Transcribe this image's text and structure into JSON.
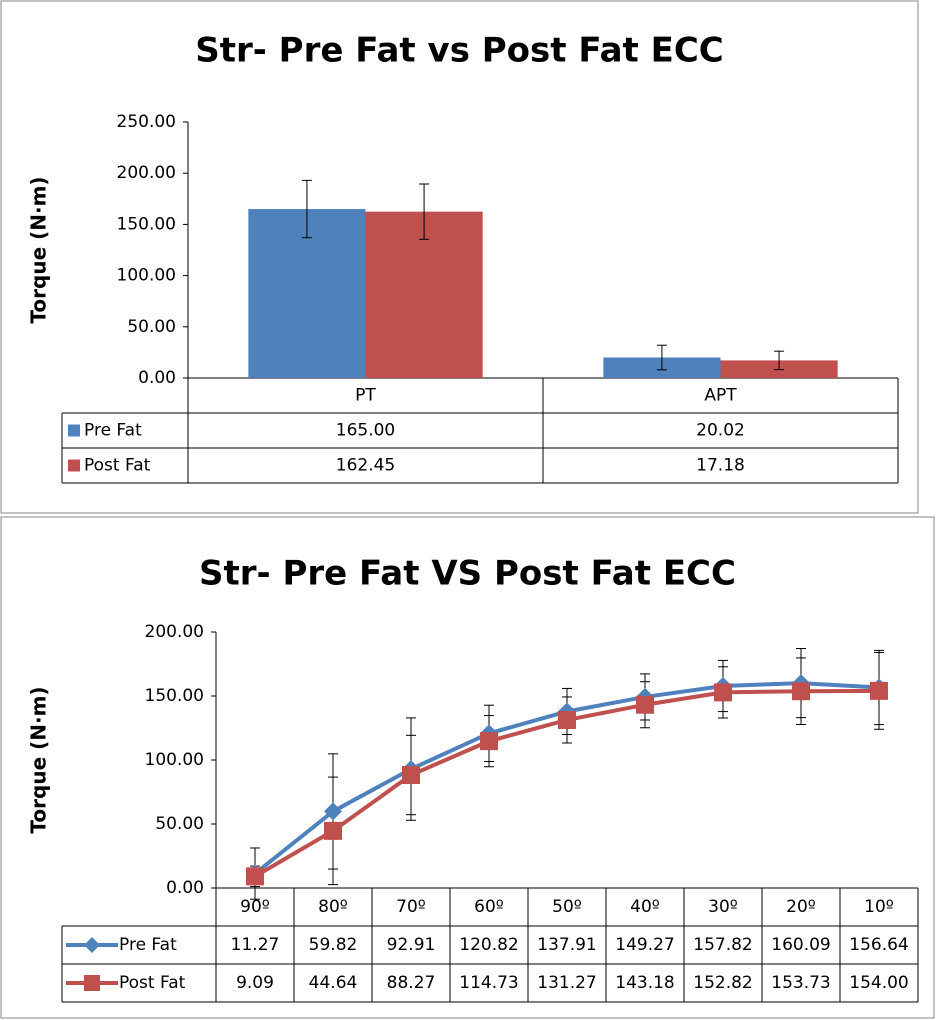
{
  "chart_data": [
    {
      "type": "bar",
      "title": "Str- Pre Fat vs Post Fat ECC",
      "y_label": "Torque (N·m)",
      "categories": [
        "PT",
        "APT"
      ],
      "series": [
        {
          "name": "Pre Fat",
          "color": "#4f81bd",
          "values": [
            165.0,
            20.02
          ],
          "value_labels": [
            "165.00",
            "20.02"
          ],
          "errors": [
            28,
            12
          ]
        },
        {
          "name": "Post Fat",
          "color": "#c0504d",
          "values": [
            162.45,
            17.18
          ],
          "value_labels": [
            "162.45",
            "17.18"
          ],
          "errors": [
            27,
            9
          ]
        }
      ],
      "ylim": [
        0,
        250
      ],
      "yticks": [
        {
          "value": 0,
          "label": "0.00"
        },
        {
          "value": 50,
          "label": "50.00"
        },
        {
          "value": 100,
          "label": "100.00"
        },
        {
          "value": 150,
          "label": "150.00"
        },
        {
          "value": 200,
          "label": "200.00"
        },
        {
          "value": 250,
          "label": "250.00"
        }
      ],
      "grid": false
    },
    {
      "type": "line",
      "title": "Str- Pre Fat VS Post Fat ECC",
      "y_label": "Torque (N·m)",
      "categories": [
        "90º",
        "80º",
        "70º",
        "60º",
        "50º",
        "40º",
        "30º",
        "20º",
        "10º"
      ],
      "series": [
        {
          "name": "Pre Fat",
          "color": "#4f81bd",
          "marker": "diamond",
          "values": [
            11.27,
            59.82,
            92.91,
            120.82,
            137.91,
            149.27,
            157.82,
            160.09,
            156.64
          ],
          "errors": [
            20,
            45,
            40,
            22,
            18,
            18,
            20,
            27,
            29
          ]
        },
        {
          "name": "Post Fat",
          "color": "#c0504d",
          "marker": "square",
          "values": [
            9.09,
            44.64,
            88.27,
            114.73,
            131.27,
            143.18,
            152.82,
            153.73,
            154.0
          ],
          "value_labels": [
            "9.09",
            "44.64",
            "88.27",
            "114.73",
            "131.27",
            "143.18",
            "152.82",
            "153.73",
            "154.00"
          ],
          "errors": [
            8,
            42,
            31,
            20,
            18,
            18,
            20,
            26,
            30
          ]
        }
      ],
      "ylim": [
        0,
        200
      ],
      "yticks": [
        {
          "value": 0,
          "label": "0.00"
        },
        {
          "value": 50,
          "label": "50.00"
        },
        {
          "value": 100,
          "label": "100.00"
        },
        {
          "value": 150,
          "label": "150.00"
        },
        {
          "value": 200,
          "label": "200.00"
        }
      ],
      "grid": false
    }
  ]
}
